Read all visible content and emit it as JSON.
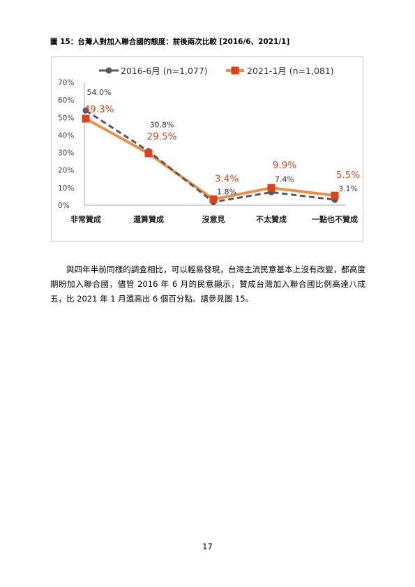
{
  "figure": {
    "title": "圖 15：台灣人對加入聯合國的態度：前後兩次比較  [2016/6、2021/1]"
  },
  "paragraph": "與四年半前同樣的調查相比，可以輕易發現，台灣主流民意基本上沒有改變，都高度期盼加入聯合國，儘管 2016 年 6 月的民意顯示，贊成台灣加入聯合國比例高達八成五，比 2021 年 1 月還高出 6 個百分點。請參見圖 15。",
  "page_number": "17",
  "chart_data": {
    "type": "line",
    "categories": [
      "非常贊成",
      "還算贊成",
      "沒意見",
      "不太贊成",
      "一點也不贊成"
    ],
    "series": [
      {
        "name": "2016-6月  (n=1,077)",
        "values": [
          54.0,
          30.8,
          1.8,
          7.4,
          3.1
        ],
        "labels": [
          "54.0%",
          "30.8%",
          "1.8%",
          "7.4%",
          "3.1%"
        ],
        "color": "#595959",
        "line_style": "dashed",
        "marker": "circle"
      },
      {
        "name": "2021-1月  (n=1,081)",
        "values": [
          49.3,
          29.5,
          3.4,
          9.9,
          5.5
        ],
        "labels": [
          "49.3%",
          "29.5%",
          "3.4%",
          "9.9%",
          "5.5%"
        ],
        "color": "#e8914f",
        "marker_color": "#d9441e",
        "label_color": "#e0461c",
        "line_style": "solid",
        "marker": "square"
      }
    ],
    "yticks": [
      "0%",
      "10%",
      "20%",
      "30%",
      "40%",
      "50%",
      "60%",
      "70%"
    ],
    "ylim": [
      0,
      70
    ],
    "grid": false,
    "legend_placement": "top"
  }
}
